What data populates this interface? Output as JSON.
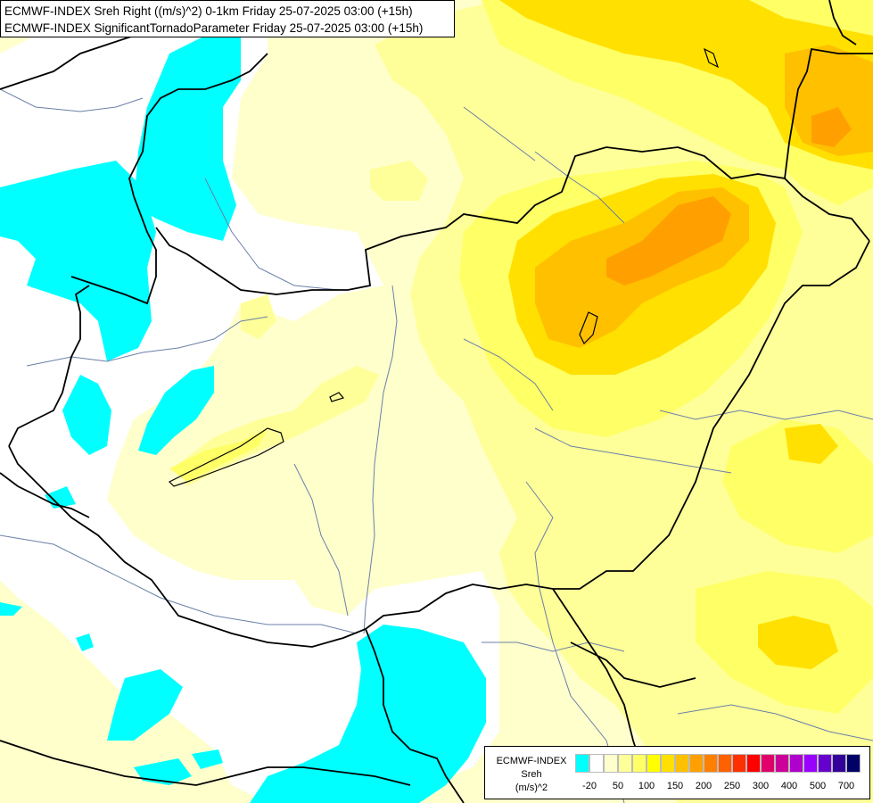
{
  "title": {
    "line1": "ECMWF-INDEX Sreh Right ((m/s)^2) 0-1km Friday 25-07-2025 03:00 (+15h)",
    "line2": "ECMWF-INDEX SignificantTornadoParameter Friday 25-07-2025 03:00 (+15h)"
  },
  "legend": {
    "title_line1": "ECMWF-INDEX",
    "title_line2": "Sreh",
    "title_line3": "(m/s)^2",
    "colors": [
      "#00ffff",
      "#ffffff",
      "#ffffcc",
      "#ffff99",
      "#ffff66",
      "#ffff00",
      "#ffe000",
      "#ffc000",
      "#ffa000",
      "#ff8000",
      "#ff6000",
      "#ff3000",
      "#ff0000",
      "#e0006a",
      "#cc0099",
      "#b000cc",
      "#9900ff",
      "#6600cc",
      "#330099",
      "#000066"
    ],
    "labels": [
      "-20",
      "50",
      "100",
      "150",
      "200",
      "250",
      "300",
      "400",
      "500",
      "700"
    ]
  }
}
